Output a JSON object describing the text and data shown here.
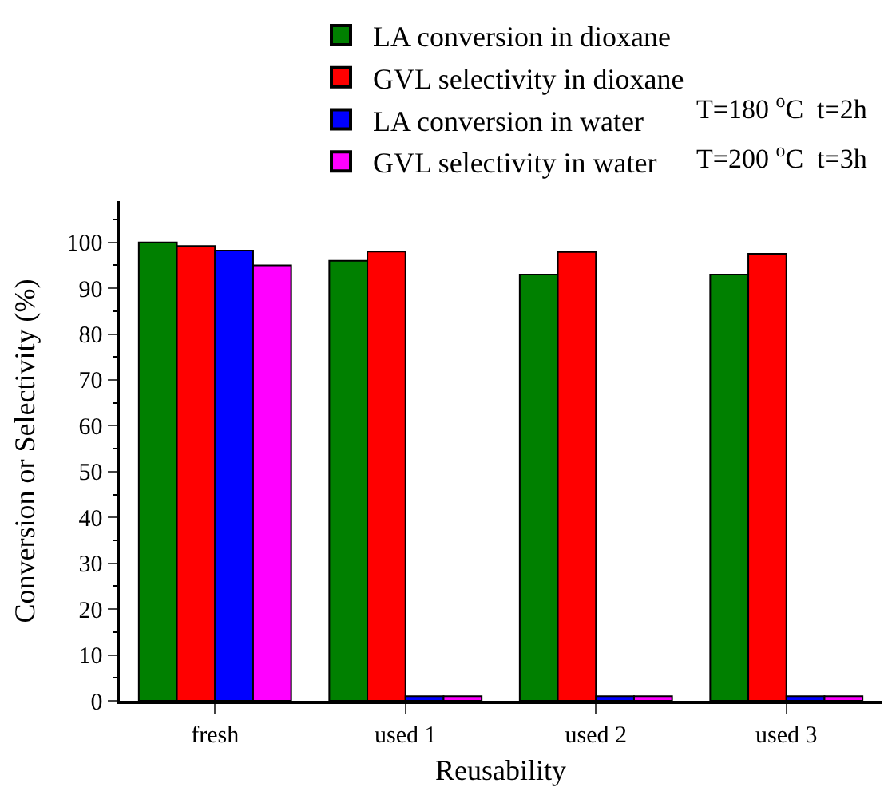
{
  "chart_data": {
    "type": "bar",
    "xlabel": "Reusability",
    "ylabel": "Conversion or Selectivity (%)",
    "categories": [
      "fresh",
      "used 1",
      "used 2",
      "used 3"
    ],
    "series": [
      {
        "name": "LA conversion in dioxane",
        "color": "#008000",
        "values": [
          100,
          96,
          93,
          93
        ]
      },
      {
        "name": "GVL selectivity in dioxane",
        "color": "#ff0000",
        "values": [
          99.2,
          98,
          97.9,
          97.5
        ]
      },
      {
        "name": "LA conversion in water",
        "color": "#0000ff",
        "values": [
          98.2,
          1,
          1,
          1
        ]
      },
      {
        "name": "GVL selectivity in water",
        "color": "#ff00ff",
        "values": [
          95,
          1,
          1,
          1
        ]
      }
    ],
    "ylim": [
      0,
      109
    ],
    "yticks": [
      0,
      {
        "value": 5,
        "label": null
      },
      10,
      {
        "value": 15,
        "label": null
      },
      20,
      {
        "value": 25,
        "label": null
      },
      30,
      {
        "value": 35,
        "label": null
      },
      40,
      {
        "value": 45,
        "label": null
      },
      50,
      {
        "value": 55,
        "label": null
      },
      60,
      {
        "value": 65,
        "label": null
      },
      70,
      {
        "value": 75,
        "label": null
      },
      80,
      {
        "value": 85,
        "label": null
      },
      90,
      {
        "value": 95,
        "label": null
      },
      100,
      {
        "value": 105,
        "label": null
      }
    ],
    "annotations": [
      "T=180 $^{o}$C  t=2h",
      "T=200 $^{o}$C  t=3h"
    ],
    "legend": "top"
  }
}
